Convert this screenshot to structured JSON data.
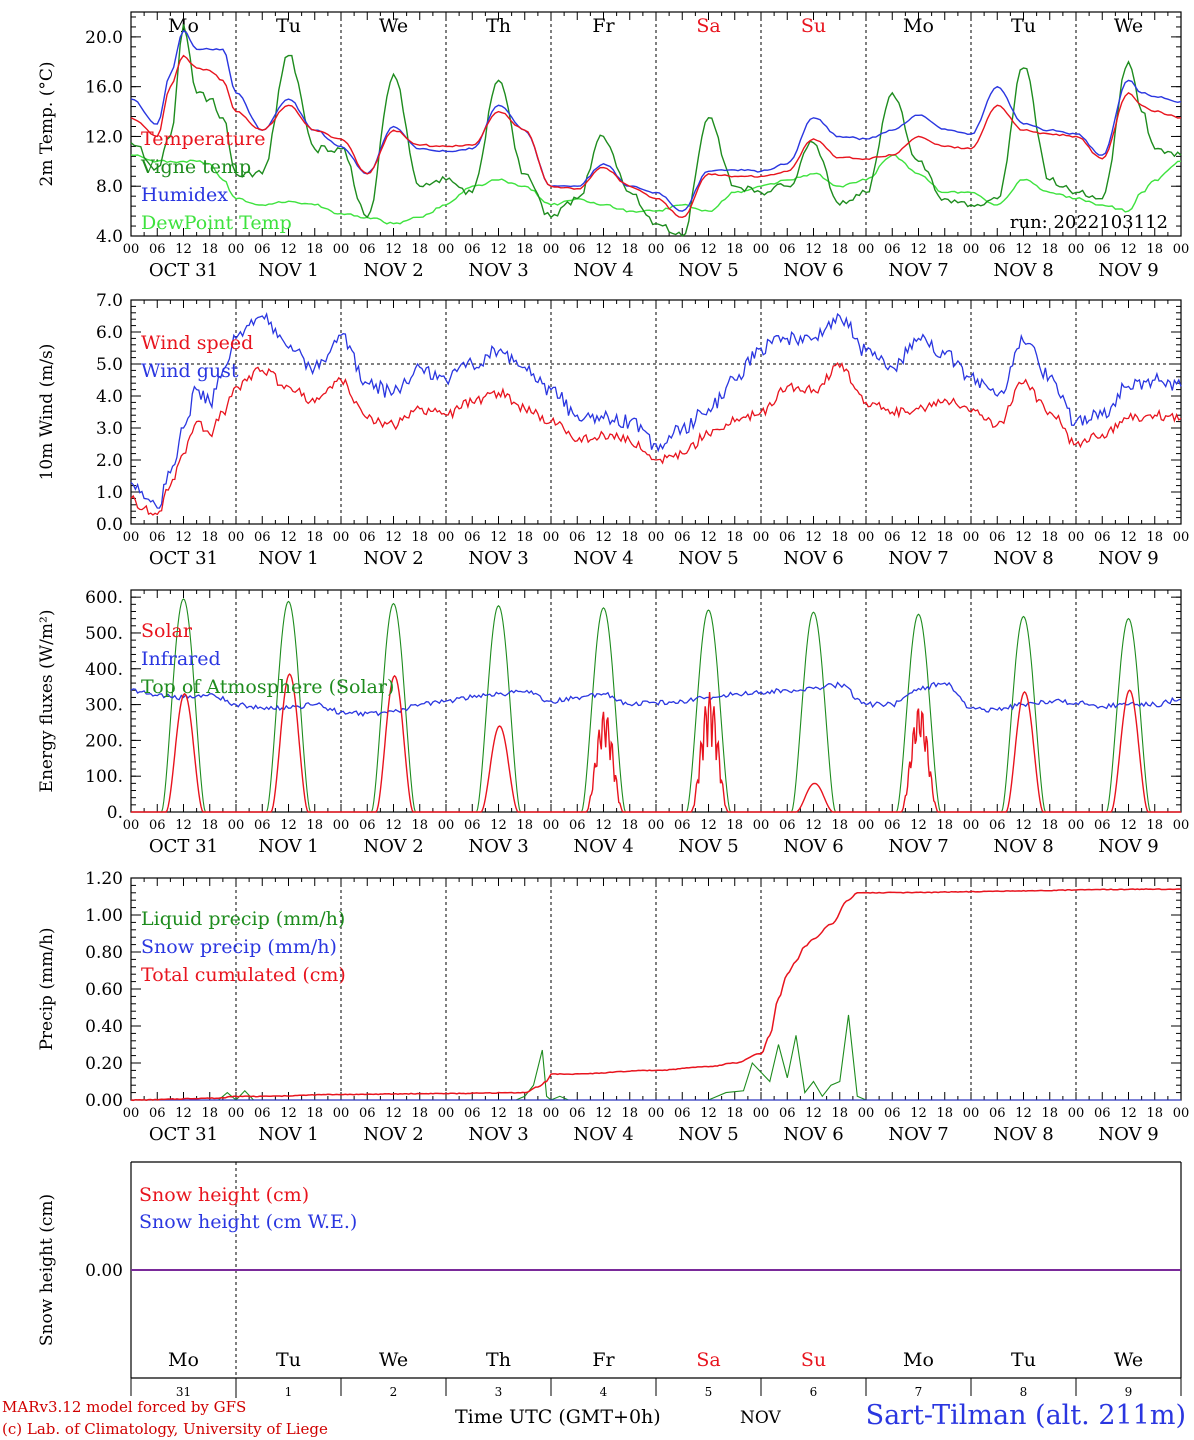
{
  "meteogram": {
    "run_label": "run: 2022103112",
    "days": [
      {
        "abbr": "Mo",
        "weekend": false,
        "month": "OCT",
        "num": "31"
      },
      {
        "abbr": "Tu",
        "weekend": false,
        "month": "NOV",
        "num": "1"
      },
      {
        "abbr": "We",
        "weekend": false,
        "month": "NOV",
        "num": "2"
      },
      {
        "abbr": "Th",
        "weekend": false,
        "month": "NOV",
        "num": "3"
      },
      {
        "abbr": "Fr",
        "weekend": false,
        "month": "NOV",
        "num": "4"
      },
      {
        "abbr": "Sa",
        "weekend": true,
        "month": "NOV",
        "num": "5"
      },
      {
        "abbr": "Su",
        "weekend": true,
        "month": "NOV",
        "num": "6"
      },
      {
        "abbr": "Mo",
        "weekend": false,
        "month": "NOV",
        "num": "7"
      },
      {
        "abbr": "Tu",
        "weekend": false,
        "month": "NOV",
        "num": "8"
      },
      {
        "abbr": "We",
        "weekend": false,
        "month": "NOV",
        "num": "9"
      }
    ],
    "hour_ticks": [
      "00",
      "06",
      "12",
      "18"
    ],
    "end_hour": "00",
    "bottom_month": "NOV",
    "colors": {
      "red": "#e8141e",
      "blue": "#2a36e0",
      "green": "#1e8c1e",
      "lightgreen": "#3ee23e",
      "purple": "#7a2a9a",
      "black": "#000000"
    }
  },
  "footer": {
    "model_line": "MARv3.12 model forced by GFS",
    "copyright_line": "(c) Lab. of Climatology, University of Liege",
    "axis_title": "Time UTC (GMT+0h)",
    "month": "NOV",
    "site": "Sart-Tilman (alt. 211m)"
  },
  "chart_data": [
    {
      "type": "line",
      "title": "",
      "ylabel": "2m Temp. (°C)",
      "ylim": [
        4,
        22
      ],
      "yticks": [
        4,
        8,
        12,
        16,
        20
      ],
      "ytick_labels": [
        "4.0",
        "8.0",
        "12.0",
        "16.0",
        "20.0"
      ],
      "xlabel": "Time UTC (GMT+0h)",
      "x_unit": "hours since 31 Oct 00 UTC",
      "xlim": [
        0,
        240
      ],
      "legend_position": "left",
      "series": [
        {
          "name": "Temperature",
          "color": "red",
          "x": [
            0,
            6,
            9,
            12,
            15,
            18,
            21,
            24,
            30,
            36,
            42,
            48,
            54,
            60,
            66,
            72,
            78,
            84,
            90,
            96,
            102,
            108,
            114,
            120,
            126,
            132,
            138,
            144,
            150,
            156,
            162,
            168,
            174,
            180,
            186,
            192,
            198,
            204,
            210,
            216,
            222,
            228,
            231,
            234,
            240
          ],
          "y": [
            13.5,
            12,
            16,
            18.5,
            17.5,
            17.3,
            16.5,
            14,
            12.5,
            14.5,
            12.5,
            11.8,
            9,
            12.5,
            11.3,
            11.2,
            11.3,
            14,
            12.5,
            8,
            7.8,
            9.5,
            8,
            7,
            5.5,
            9,
            8.8,
            8.8,
            9.2,
            11.8,
            10.3,
            10.2,
            10.5,
            12,
            11.2,
            11,
            14.5,
            12.5,
            12.2,
            12,
            10.2,
            15.5,
            14.5,
            14,
            13.5
          ]
        },
        {
          "name": "Vigne temp",
          "color": "green",
          "x": [
            0,
            6,
            9,
            12,
            15,
            18,
            21,
            24,
            30,
            36,
            42,
            48,
            54,
            60,
            66,
            72,
            78,
            84,
            90,
            96,
            102,
            108,
            114,
            120,
            126,
            132,
            138,
            144,
            150,
            156,
            162,
            168,
            174,
            180,
            186,
            192,
            198,
            204,
            210,
            216,
            222,
            228,
            231,
            234,
            240
          ],
          "y": [
            11.5,
            9.5,
            12,
            21,
            15.5,
            15,
            13.5,
            9,
            9,
            18.5,
            11,
            11,
            5.5,
            17,
            8,
            8.5,
            7.5,
            16.5,
            9,
            5.5,
            7,
            12,
            7.5,
            5,
            4,
            13.5,
            8,
            7.5,
            8,
            11.5,
            6.5,
            7.5,
            15.5,
            10,
            7,
            6.5,
            7,
            17.5,
            8.5,
            7.5,
            7,
            18,
            14,
            11,
            10.5
          ]
        },
        {
          "name": "Humidex",
          "color": "blue",
          "x": [
            0,
            6,
            9,
            12,
            15,
            18,
            21,
            24,
            30,
            36,
            42,
            48,
            54,
            60,
            66,
            72,
            78,
            84,
            90,
            96,
            102,
            108,
            114,
            120,
            126,
            132,
            138,
            144,
            150,
            156,
            162,
            168,
            174,
            180,
            186,
            192,
            198,
            204,
            210,
            216,
            222,
            228,
            231,
            234,
            240
          ],
          "y": [
            15,
            13,
            17,
            20.5,
            19,
            19,
            19,
            15.5,
            12.5,
            15,
            12.5,
            11.2,
            9,
            12.8,
            11,
            10.8,
            11,
            14.5,
            12.5,
            8,
            8,
            9.8,
            8,
            7.5,
            6,
            9.2,
            9.3,
            9.2,
            9.8,
            13.5,
            12,
            11.8,
            12.5,
            13.7,
            12.6,
            12.2,
            16,
            13,
            12.5,
            12.2,
            10.5,
            16.5,
            15.5,
            15.2,
            14.8
          ]
        },
        {
          "name": "DewPoint Temp",
          "color": "lightgreen",
          "x": [
            0,
            6,
            9,
            12,
            15,
            18,
            21,
            24,
            30,
            36,
            42,
            48,
            54,
            60,
            66,
            72,
            78,
            84,
            90,
            96,
            102,
            108,
            114,
            120,
            126,
            132,
            138,
            144,
            150,
            156,
            162,
            168,
            174,
            180,
            186,
            192,
            198,
            204,
            210,
            216,
            222,
            228,
            231,
            234,
            240
          ],
          "y": [
            10.5,
            10,
            10,
            10,
            10,
            9.8,
            8.5,
            7,
            6.5,
            6.8,
            6.5,
            5.8,
            5.5,
            5,
            5.5,
            6.5,
            8,
            8.5,
            8,
            6.5,
            7,
            6.5,
            6,
            6,
            6.5,
            6,
            7.5,
            8,
            8.5,
            9,
            8,
            8.5,
            10.5,
            9,
            7.5,
            7.5,
            6.5,
            8.5,
            7.5,
            7,
            6.5,
            6,
            7.5,
            8.5,
            10
          ]
        }
      ]
    },
    {
      "type": "line",
      "title": "",
      "ylabel": "10m Wind (m/s)",
      "ylim": [
        0,
        7
      ],
      "yticks": [
        0,
        1,
        2,
        3,
        4,
        5,
        6,
        7
      ],
      "ytick_labels": [
        "0.0",
        "1.0",
        "2.0",
        "3.0",
        "4.0",
        "5.0",
        "6.0",
        "7.0"
      ],
      "reference_line": 5,
      "xlim": [
        0,
        240
      ],
      "legend_position": "left",
      "series": [
        {
          "name": "Wind speed",
          "color": "red",
          "x": [
            0,
            3,
            6,
            9,
            12,
            15,
            18,
            21,
            24,
            30,
            36,
            42,
            48,
            54,
            60,
            66,
            72,
            78,
            84,
            90,
            96,
            102,
            108,
            114,
            120,
            126,
            132,
            138,
            144,
            150,
            156,
            162,
            168,
            174,
            180,
            186,
            192,
            198,
            204,
            210,
            216,
            222,
            228,
            234,
            240
          ],
          "y": [
            0.8,
            0.5,
            0.3,
            1.2,
            2.2,
            3.2,
            2.8,
            3.5,
            4.3,
            4.8,
            4.3,
            3.8,
            4.5,
            3.3,
            3.1,
            3.6,
            3.4,
            3.8,
            4.1,
            3.6,
            3.2,
            2.6,
            2.8,
            2.6,
            2,
            2.2,
            2.8,
            3.2,
            3.5,
            4.3,
            4.2,
            4.9,
            3.8,
            3.5,
            3.6,
            3.9,
            3.5,
            3.1,
            4.4,
            3.5,
            2.5,
            2.8,
            3.3,
            3.4,
            3.3
          ]
        },
        {
          "name": "Wind gust",
          "color": "blue",
          "x": [
            0,
            3,
            6,
            9,
            12,
            15,
            18,
            21,
            24,
            30,
            36,
            42,
            48,
            54,
            60,
            66,
            72,
            78,
            84,
            90,
            96,
            102,
            108,
            114,
            120,
            126,
            132,
            138,
            144,
            150,
            156,
            162,
            168,
            174,
            180,
            186,
            192,
            198,
            204,
            210,
            216,
            222,
            228,
            234,
            240
          ],
          "y": [
            1.3,
            0.8,
            0.5,
            1.6,
            3,
            4.2,
            3.8,
            4.8,
            5.8,
            6.5,
            5.5,
            4.9,
            5.9,
            4.4,
            4.1,
            4.9,
            4.5,
            5,
            5.4,
            4.9,
            4.2,
            3.4,
            3.3,
            3.2,
            2.5,
            3,
            3.6,
            4.5,
            5.5,
            5.8,
            5.8,
            6.5,
            5.4,
            4.9,
            5.8,
            5.3,
            4.6,
            4,
            5.7,
            4.6,
            3.2,
            3.4,
            4.3,
            4.5,
            4.3
          ]
        }
      ]
    },
    {
      "type": "line",
      "title": "",
      "ylabel": "Energy fluxes (W/m²)",
      "ylim": [
        0,
        620
      ],
      "yticks": [
        0,
        100,
        200,
        300,
        400,
        500,
        600
      ],
      "ytick_labels": [
        "0.",
        "100.",
        "200.",
        "300.",
        "400.",
        "500.",
        "600."
      ],
      "xlim": [
        0,
        240
      ],
      "legend_position": "left",
      "series": [
        {
          "name": "Solar",
          "color": "red",
          "day_peaks": [
            330,
            385,
            380,
            240,
            285,
            335,
            80,
            300,
            335,
            340
          ]
        },
        {
          "name": "Infrared",
          "color": "blue",
          "x": [
            0,
            6,
            12,
            18,
            24,
            30,
            36,
            42,
            48,
            54,
            60,
            66,
            72,
            78,
            84,
            90,
            96,
            102,
            108,
            114,
            120,
            126,
            132,
            138,
            144,
            150,
            156,
            162,
            168,
            174,
            180,
            186,
            192,
            198,
            204,
            210,
            216,
            222,
            228,
            234,
            240
          ],
          "y": [
            340,
            325,
            320,
            330,
            300,
            290,
            290,
            300,
            280,
            275,
            280,
            300,
            310,
            320,
            330,
            335,
            310,
            320,
            330,
            300,
            305,
            310,
            320,
            330,
            335,
            340,
            345,
            355,
            300,
            300,
            345,
            360,
            290,
            285,
            300,
            310,
            305,
            295,
            300,
            300,
            315
          ]
        },
        {
          "name": "Top of Atmosphere (Solar)",
          "color": "green",
          "day_peaks": [
            595,
            588,
            582,
            576,
            570,
            564,
            558,
            552,
            546,
            540
          ]
        }
      ]
    },
    {
      "type": "line",
      "title": "",
      "ylabel": "Precip (mm/h)",
      "ylim": [
        0,
        1.2
      ],
      "yticks": [
        0,
        0.2,
        0.4,
        0.6,
        0.8,
        1.0,
        1.2
      ],
      "ytick_labels": [
        "0.00",
        "0.20",
        "0.40",
        "0.60",
        "0.80",
        "1.00",
        "1.20"
      ],
      "xlim": [
        0,
        240
      ],
      "legend_position": "left",
      "series": [
        {
          "name": "Liquid precip (mm/h)",
          "color": "green",
          "x": [
            0,
            20,
            22,
            24,
            26,
            28,
            88,
            90,
            92,
            94,
            95,
            96,
            98,
            100,
            132,
            136,
            140,
            142,
            144,
            146,
            148,
            150,
            152,
            154,
            156,
            158,
            160,
            162,
            164,
            166,
            168,
            170,
            240
          ],
          "y": [
            0,
            0,
            0.04,
            0,
            0.05,
            0,
            0,
            0.02,
            0.08,
            0.27,
            0.02,
            0,
            0.02,
            0,
            0,
            0.04,
            0.05,
            0.2,
            0.15,
            0.1,
            0.3,
            0.12,
            0.35,
            0.04,
            0.1,
            0.02,
            0.08,
            0.1,
            0.46,
            0.02,
            0,
            0,
            0
          ]
        },
        {
          "name": "Snow precip (mm/h)",
          "color": "blue",
          "x": [
            0,
            240
          ],
          "y": [
            0,
            0
          ]
        },
        {
          "name": "Total cumulated (cm)",
          "color": "red",
          "x": [
            0,
            20,
            24,
            30,
            48,
            72,
            90,
            93,
            95,
            96,
            100,
            120,
            132,
            138,
            144,
            146,
            148,
            150,
            152,
            154,
            156,
            160,
            164,
            166,
            240
          ],
          "y": [
            0,
            0.01,
            0.02,
            0.02,
            0.03,
            0.035,
            0.04,
            0.07,
            0.1,
            0.14,
            0.14,
            0.16,
            0.18,
            0.2,
            0.25,
            0.35,
            0.55,
            0.68,
            0.75,
            0.83,
            0.87,
            0.95,
            1.08,
            1.12,
            1.14
          ]
        }
      ]
    },
    {
      "type": "line",
      "title": "",
      "ylabel": "Snow height (cm)",
      "ylim": [
        -1,
        1
      ],
      "yticks": [
        0
      ],
      "ytick_labels": [
        "0.00"
      ],
      "xlim": [
        0,
        240
      ],
      "legend_position": "left",
      "series": [
        {
          "name": "Snow height (cm)",
          "color": "red",
          "x": [
            0,
            240
          ],
          "y": [
            0,
            0
          ]
        },
        {
          "name": "Snow height (cm W.E.)",
          "color": "blue",
          "x": [
            0,
            240
          ],
          "y": [
            0,
            0
          ]
        }
      ]
    }
  ]
}
